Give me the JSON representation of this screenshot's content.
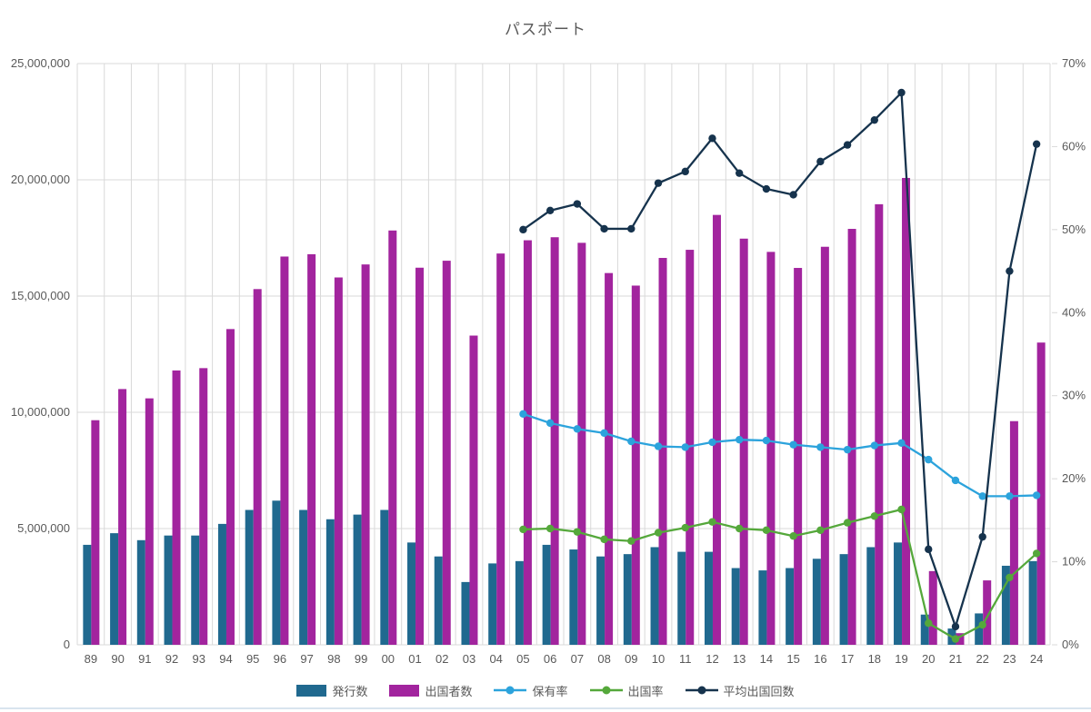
{
  "chart_data": {
    "type": "combo-bar-line",
    "title": "パスポート",
    "categories": [
      "89",
      "90",
      "91",
      "92",
      "93",
      "94",
      "95",
      "96",
      "97",
      "98",
      "99",
      "00",
      "01",
      "02",
      "03",
      "04",
      "05",
      "06",
      "07",
      "08",
      "09",
      "10",
      "11",
      "12",
      "13",
      "14",
      "15",
      "16",
      "17",
      "18",
      "19",
      "20",
      "21",
      "22",
      "23",
      "24"
    ],
    "left_axis": {
      "min": 0,
      "max": 25000000,
      "tick_interval": 5000000,
      "tick_labels": [
        "0",
        "5,000,000",
        "10,000,000",
        "15,000,000",
        "20,000,000",
        "25,000,000"
      ]
    },
    "right_axis": {
      "min": 0,
      "max": 70,
      "tick_interval": 10,
      "unit": "%",
      "tick_labels": [
        "0%",
        "10%",
        "20%",
        "30%",
        "40%",
        "50%",
        "60%",
        "70%"
      ]
    },
    "grid": true,
    "legend_position": "bottom",
    "series": [
      {
        "id": "issuance",
        "name": "発行数",
        "type": "bar",
        "axis": "left",
        "color": "#20698F",
        "values": [
          4300000,
          4800000,
          4500000,
          4700000,
          4700000,
          5200000,
          5800000,
          6200000,
          5800000,
          5400000,
          5600000,
          5800000,
          4400000,
          3800000,
          2700000,
          3500000,
          3600000,
          4300000,
          4100000,
          3800000,
          3900000,
          4200000,
          4000000,
          4000000,
          3300000,
          3200000,
          3300000,
          3700000,
          3900000,
          4200000,
          4400000,
          1300000,
          700000,
          1350000,
          3400000,
          3600000
        ]
      },
      {
        "id": "departures",
        "name": "出国者数",
        "type": "bar",
        "axis": "left",
        "color": "#A2249E",
        "values": [
          9660000,
          11000000,
          10600000,
          11800000,
          11900000,
          13580000,
          15300000,
          16700000,
          16800000,
          15800000,
          16360000,
          17820000,
          16220000,
          16520000,
          13300000,
          16830000,
          17400000,
          17530000,
          17290000,
          15990000,
          15450000,
          16640000,
          16990000,
          18490000,
          17470000,
          16900000,
          16210000,
          17120000,
          17890000,
          18950000,
          20080000,
          3170000,
          500000,
          2770000,
          9620000,
          13000000
        ]
      },
      {
        "id": "ownership-rate",
        "name": "保有率",
        "type": "line",
        "axis": "right",
        "color": "#2CA3DC",
        "values": [
          null,
          null,
          null,
          null,
          null,
          null,
          null,
          null,
          null,
          null,
          null,
          null,
          null,
          null,
          null,
          null,
          27.8,
          26.7,
          26.0,
          25.5,
          24.5,
          23.9,
          23.8,
          24.4,
          24.7,
          24.6,
          24.1,
          23.8,
          23.5,
          24.0,
          24.3,
          22.3,
          19.8,
          17.9,
          17.9,
          18.0
        ]
      },
      {
        "id": "departure-rate",
        "name": "出国率",
        "type": "line",
        "axis": "right",
        "color": "#55A83B",
        "values": [
          null,
          null,
          null,
          null,
          null,
          null,
          null,
          null,
          null,
          null,
          null,
          null,
          null,
          null,
          null,
          null,
          13.9,
          14.0,
          13.6,
          12.7,
          12.5,
          13.5,
          14.1,
          14.8,
          14.0,
          13.8,
          13.1,
          13.8,
          14.7,
          15.5,
          16.3,
          2.6,
          0.7,
          2.4,
          8.1,
          11.0
        ]
      },
      {
        "id": "avg-departure-count",
        "name": "平均出国回数",
        "type": "line",
        "axis": "right",
        "color": "#16334D",
        "values": [
          null,
          null,
          null,
          null,
          null,
          null,
          null,
          null,
          null,
          null,
          null,
          null,
          null,
          null,
          null,
          null,
          50.0,
          52.3,
          53.1,
          50.1,
          50.1,
          55.6,
          57.0,
          61.0,
          56.8,
          54.9,
          54.2,
          58.2,
          60.2,
          63.2,
          66.5,
          11.5,
          2.2,
          13.0,
          45.0,
          60.3
        ]
      }
    ],
    "style": {
      "grid_color": "#D9D9D9",
      "label_color": "#595959",
      "title_color": "#595959",
      "background": "#FFFFFF"
    }
  }
}
